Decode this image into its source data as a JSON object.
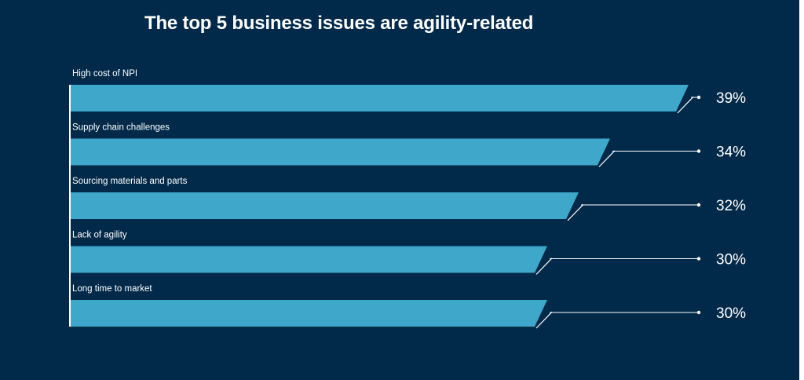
{
  "colors": {
    "background": "#012a4a",
    "bar": "#3fa7c9",
    "text": "#ffffff",
    "axis": "#ffffff"
  },
  "chart_data": {
    "type": "bar",
    "orientation": "horizontal",
    "title": "The top 5 business issues are agility-related",
    "categories": [
      "High cost of NPI",
      "Supply chain challenges",
      "Sourcing materials and parts",
      "Lack of agility",
      "Long time to market"
    ],
    "values": [
      39,
      34,
      32,
      30,
      30
    ],
    "value_labels": [
      "39%",
      "34%",
      "32%",
      "30%",
      "30%"
    ],
    "unit": "%",
    "grid": false,
    "legend": "none"
  }
}
